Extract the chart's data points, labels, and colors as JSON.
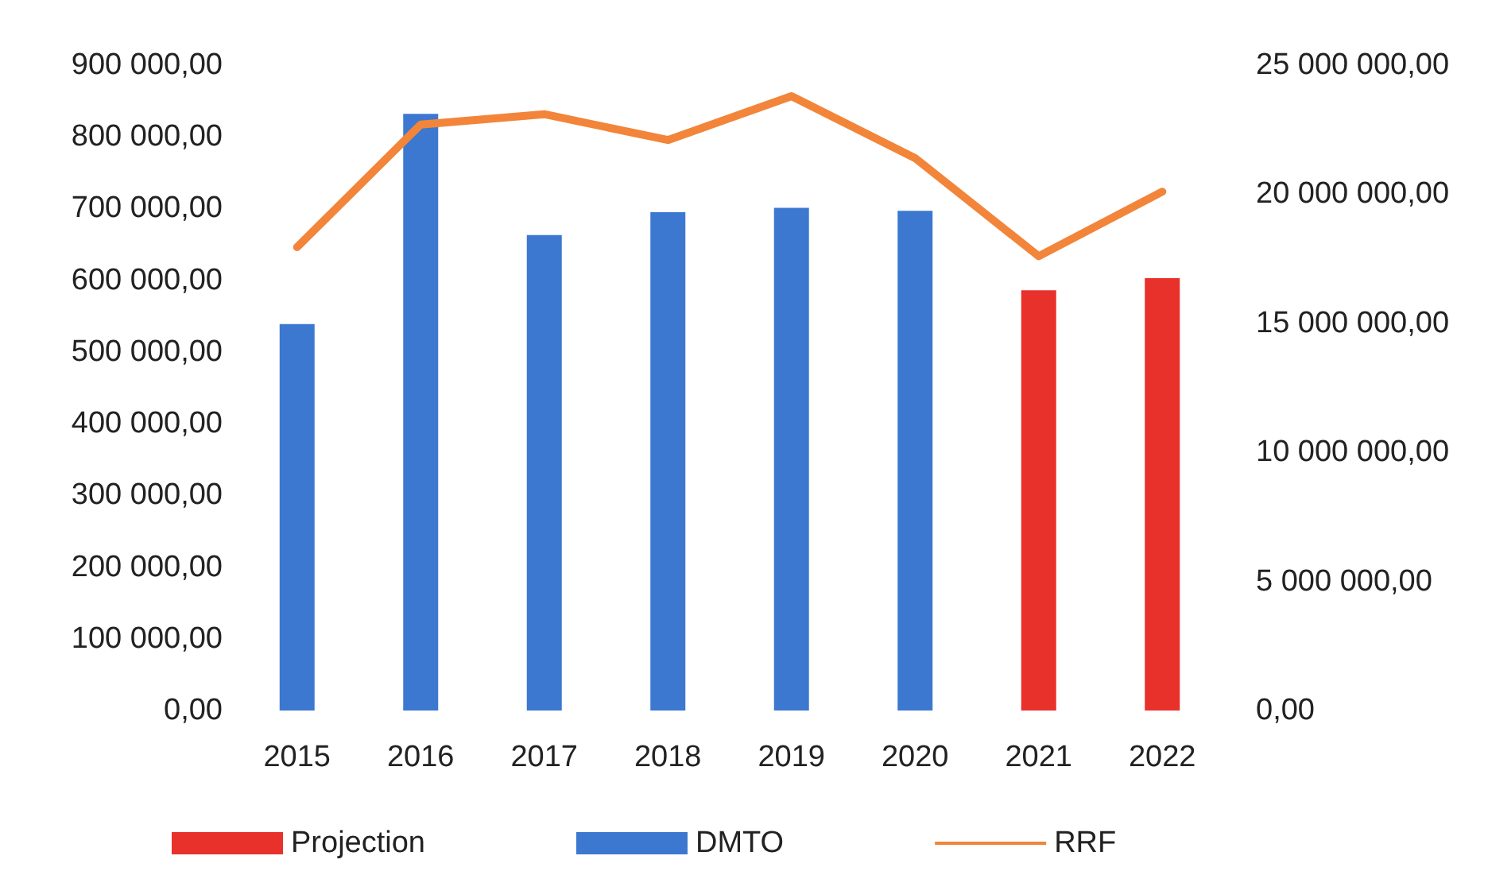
{
  "chart_data": {
    "type": "bar",
    "stacked": true,
    "categories": [
      "2015",
      "2016",
      "2017",
      "2018",
      "2019",
      "2020",
      "2021",
      "2022"
    ],
    "series": [
      {
        "name": "Projection",
        "color": "#e8312a",
        "values": [
          null,
          null,
          null,
          null,
          null,
          null,
          586000,
          603000
        ]
      },
      {
        "name": "DMTO",
        "color": "#3c78d0",
        "values": [
          539000,
          832000,
          663000,
          695000,
          701000,
          697000,
          null,
          null
        ]
      },
      {
        "name": "RRF",
        "type": "line",
        "axis": "y2",
        "color": "#f2853a",
        "values": [
          17950000,
          22700000,
          23100000,
          22100000,
          23800000,
          21400000,
          17600000,
          20100000
        ]
      }
    ],
    "ylim": [
      0,
      900000
    ],
    "yticks": [
      {
        "value": 0,
        "label": "0,00"
      },
      {
        "value": 100000,
        "label": "100 000,00"
      },
      {
        "value": 200000,
        "label": "200 000,00"
      },
      {
        "value": 300000,
        "label": "300 000,00"
      },
      {
        "value": 400000,
        "label": "400 000,00"
      },
      {
        "value": 500000,
        "label": "500 000,00"
      },
      {
        "value": 600000,
        "label": "600 000,00"
      },
      {
        "value": 700000,
        "label": "700 000,00"
      },
      {
        "value": 800000,
        "label": "800 000,00"
      },
      {
        "value": 900000,
        "label": "900 000,00"
      }
    ],
    "y2lim": [
      0,
      25000000
    ],
    "y2ticks": [
      {
        "value": 0,
        "label": "0,00"
      },
      {
        "value": 5000000,
        "label": "5 000 000,00"
      },
      {
        "value": 10000000,
        "label": "10 000 000,00"
      },
      {
        "value": 15000000,
        "label": "15 000 000,00"
      },
      {
        "value": 20000000,
        "label": "20 000 000,00"
      },
      {
        "value": 25000000,
        "label": "25 000 000,00"
      }
    ],
    "grid": false,
    "legend": "bottom",
    "marker": "none",
    "line_style": "solid"
  }
}
